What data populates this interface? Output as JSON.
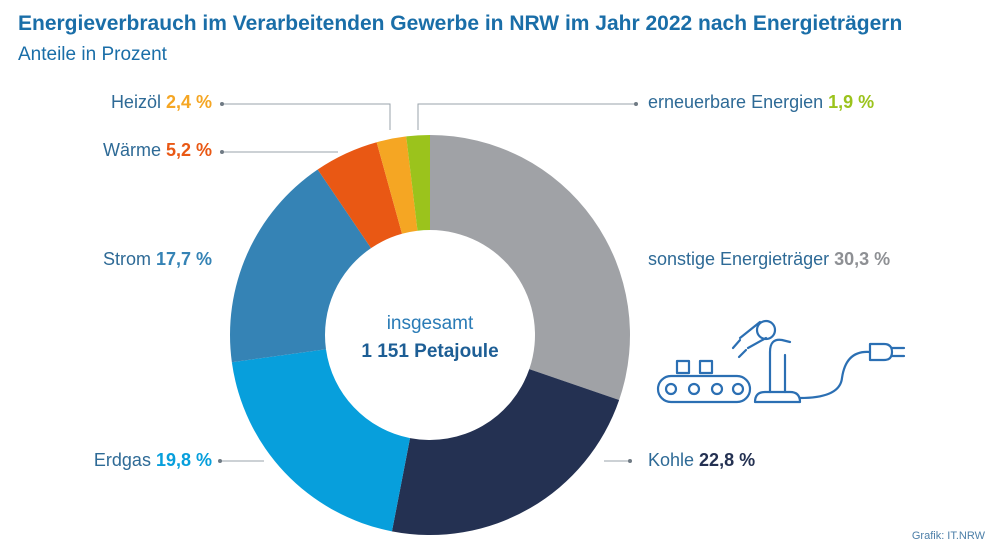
{
  "title": "Energieverbrauch im Verarbeitenden Gewerbe in NRW im Jahr 2022 nach Energieträgern",
  "subtitle": "Anteile in Prozent",
  "credit": "Grafik: IT.NRW",
  "icon": "industrial-robot-conveyor-plug-icon",
  "chart_data": {
    "type": "pie",
    "donut": true,
    "center_label": "insgesamt",
    "center_value": "1 151 Petajoule",
    "slices": [
      {
        "name": "sonstige Energieträger",
        "value": 30.3,
        "label": "30,3 %",
        "color": "#a0a2a6"
      },
      {
        "name": "Kohle",
        "value": 22.8,
        "label": "22,8 %",
        "color": "#243152"
      },
      {
        "name": "Erdgas",
        "value": 19.8,
        "label": "19,8 %",
        "color": "#079fdc"
      },
      {
        "name": "Strom",
        "value": 17.7,
        "label": "17,7 %",
        "color": "#3583b5"
      },
      {
        "name": "Wärme",
        "value": 5.2,
        "label": "5,2 %",
        "color": "#e95814"
      },
      {
        "name": "Heizöl",
        "value": 2.4,
        "label": "2,4 %",
        "color": "#f5a623"
      },
      {
        "name": "erneuerbare Energien",
        "value": 1.9,
        "label": "1,9 %",
        "color": "#9bc31c"
      }
    ]
  }
}
